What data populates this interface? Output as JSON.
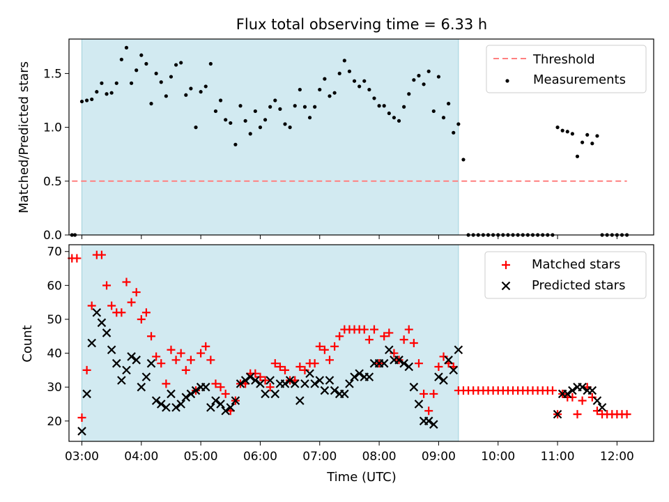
{
  "figure_title": "Flux total observing time = 6.33 h",
  "colors": {
    "shade": "#add8e6",
    "threshold": "#ff7f7f",
    "measurement": "#000000",
    "matched": "#ff0000",
    "predicted": "#000000"
  },
  "chart_data": [
    {
      "type": "scatter",
      "title": "Flux total observing time = 6.33 h",
      "ylabel": "Matched/Predicted stars",
      "xlabel": "",
      "xlim": [
        "02:47",
        "12:37"
      ],
      "ylim": [
        0,
        1.82
      ],
      "yticks": [
        "0.0",
        "0.5",
        "1.0",
        "1.5"
      ],
      "shaded_span": [
        "03:00",
        "09:20"
      ],
      "legend_position": "upper right",
      "series": [
        {
          "name": "Threshold",
          "type": "line",
          "style": "dashed",
          "x": [
            "02:50",
            "12:10"
          ],
          "y": [
            0.5,
            0.5
          ]
        },
        {
          "name": "Measurements",
          "type": "scatter",
          "x": [
            "02:50",
            "02:53",
            "03:00",
            "03:05",
            "03:10",
            "03:15",
            "03:20",
            "03:25",
            "03:30",
            "03:35",
            "03:40",
            "03:45",
            "03:50",
            "03:55",
            "04:00",
            "04:05",
            "04:10",
            "04:15",
            "04:20",
            "04:25",
            "04:30",
            "04:35",
            "04:40",
            "04:45",
            "04:50",
            "04:55",
            "05:00",
            "05:05",
            "05:10",
            "05:15",
            "05:20",
            "05:25",
            "05:30",
            "05:35",
            "05:40",
            "05:45",
            "05:50",
            "05:55",
            "06:00",
            "06:05",
            "06:10",
            "06:15",
            "06:20",
            "06:25",
            "06:30",
            "06:35",
            "06:40",
            "06:45",
            "06:50",
            "06:55",
            "07:00",
            "07:05",
            "07:10",
            "07:15",
            "07:20",
            "07:25",
            "07:30",
            "07:35",
            "07:40",
            "07:45",
            "07:50",
            "07:55",
            "08:00",
            "08:05",
            "08:10",
            "08:15",
            "08:20",
            "08:25",
            "08:30",
            "08:35",
            "08:40",
            "08:45",
            "08:50",
            "08:55",
            "09:00",
            "09:05",
            "09:10",
            "09:15",
            "09:20",
            "09:25",
            "09:30",
            "09:35",
            "09:40",
            "09:45",
            "09:50",
            "09:55",
            "10:00",
            "10:05",
            "10:10",
            "10:15",
            "10:20",
            "10:25",
            "10:30",
            "10:35",
            "10:40",
            "10:45",
            "10:50",
            "10:55",
            "11:00",
            "11:05",
            "11:10",
            "11:15",
            "11:20",
            "11:25",
            "11:30",
            "11:35",
            "11:40",
            "11:45",
            "11:50",
            "11:55",
            "12:00",
            "12:05",
            "12:10"
          ],
          "y": [
            0,
            0,
            1.24,
            1.25,
            1.26,
            1.33,
            1.41,
            1.31,
            1.32,
            1.41,
            1.63,
            1.74,
            1.41,
            1.53,
            1.67,
            1.59,
            1.22,
            1.5,
            1.42,
            1.29,
            1.47,
            1.58,
            1.6,
            1.3,
            1.36,
            1.0,
            1.33,
            1.38,
            1.59,
            1.15,
            1.25,
            1.07,
            1.04,
            0.84,
            1.2,
            1.06,
            0.94,
            1.15,
            1.0,
            1.07,
            1.19,
            1.25,
            1.17,
            1.03,
            1.0,
            1.2,
            1.35,
            1.19,
            1.09,
            1.19,
            1.35,
            1.45,
            1.29,
            1.32,
            1.5,
            1.62,
            1.52,
            1.43,
            1.38,
            1.43,
            1.35,
            1.27,
            1.2,
            1.2,
            1.13,
            1.09,
            1.06,
            1.19,
            1.31,
            1.44,
            1.48,
            1.4,
            1.52,
            1.15,
            1.47,
            1.09,
            1.22,
            0.95,
            1.03,
            0.7,
            0,
            0,
            0,
            0,
            0,
            0,
            0,
            0,
            0,
            0,
            0,
            0,
            0,
            0,
            0,
            0,
            0,
            0,
            1.0,
            0.97,
            0.96,
            0.94,
            0.73,
            0.86,
            0.93,
            0.85,
            0.92,
            0,
            0,
            0,
            0,
            0,
            0
          ]
        }
      ]
    },
    {
      "type": "scatter",
      "xlabel": "Time (UTC)",
      "ylabel": "Count",
      "xlim": [
        "02:47",
        "12:37"
      ],
      "ylim": [
        14,
        72
      ],
      "xticks": [
        "03:00",
        "04:00",
        "05:00",
        "06:00",
        "07:00",
        "08:00",
        "09:00",
        "10:00",
        "11:00",
        "12:00"
      ],
      "yticks": [
        "20",
        "30",
        "40",
        "50",
        "60",
        "70"
      ],
      "shaded_span": [
        "03:00",
        "09:20"
      ],
      "legend_position": "upper right",
      "series": [
        {
          "name": "Matched stars",
          "marker": "+",
          "x": [
            "02:50",
            "02:55",
            "03:00",
            "03:05",
            "03:10",
            "03:15",
            "03:20",
            "03:25",
            "03:30",
            "03:35",
            "03:40",
            "03:45",
            "03:50",
            "03:55",
            "04:00",
            "04:05",
            "04:10",
            "04:15",
            "04:20",
            "04:25",
            "04:30",
            "04:35",
            "04:40",
            "04:45",
            "04:50",
            "04:55",
            "05:00",
            "05:05",
            "05:10",
            "05:15",
            "05:20",
            "05:25",
            "05:30",
            "05:35",
            "05:40",
            "05:45",
            "05:50",
            "05:55",
            "06:00",
            "06:05",
            "06:10",
            "06:15",
            "06:20",
            "06:25",
            "06:30",
            "06:35",
            "06:40",
            "06:45",
            "06:50",
            "06:55",
            "07:00",
            "07:05",
            "07:10",
            "07:15",
            "07:20",
            "07:25",
            "07:30",
            "07:35",
            "07:40",
            "07:45",
            "07:50",
            "07:55",
            "08:00",
            "08:05",
            "08:10",
            "08:15",
            "08:20",
            "08:25",
            "08:30",
            "08:35",
            "08:40",
            "08:45",
            "08:50",
            "08:55",
            "09:00",
            "09:05",
            "09:10",
            "09:15",
            "09:20",
            "09:25",
            "09:30",
            "09:35",
            "09:40",
            "09:45",
            "09:50",
            "09:55",
            "10:00",
            "10:05",
            "10:10",
            "10:15",
            "10:20",
            "10:25",
            "10:30",
            "10:35",
            "10:40",
            "10:45",
            "10:50",
            "10:55",
            "11:00",
            "11:05",
            "11:10",
            "11:15",
            "11:20",
            "11:25",
            "11:30",
            "11:35",
            "11:40",
            "11:45",
            "11:50",
            "11:55",
            "12:00",
            "12:05",
            "12:10"
          ],
          "y": [
            68,
            68,
            21,
            35,
            54,
            69,
            69,
            60,
            54,
            52,
            52,
            61,
            55,
            58,
            50,
            52,
            45,
            39,
            37,
            31,
            41,
            38,
            40,
            35,
            38,
            29,
            40,
            42,
            38,
            31,
            30,
            28,
            23,
            26,
            31,
            31,
            34,
            34,
            33,
            32,
            30,
            37,
            36,
            35,
            32,
            32,
            36,
            35,
            37,
            37,
            42,
            41,
            38,
            42,
            45,
            47,
            47,
            47,
            47,
            47,
            44,
            47,
            37,
            45,
            46,
            40,
            38,
            44,
            47,
            43,
            37,
            28,
            23,
            28,
            36,
            39,
            37,
            36,
            29,
            29,
            29,
            29,
            29,
            29,
            29,
            29,
            29,
            29,
            29,
            29,
            29,
            29,
            29,
            29,
            29,
            29,
            29,
            29,
            22,
            28,
            27,
            27,
            22,
            26,
            30,
            27,
            23,
            22,
            22,
            22,
            22,
            22,
            22
          ]
        },
        {
          "name": "Predicted stars",
          "marker": "x",
          "x": [
            "03:00",
            "03:05",
            "03:10",
            "03:15",
            "03:20",
            "03:25",
            "03:30",
            "03:35",
            "03:40",
            "03:45",
            "03:50",
            "03:55",
            "04:00",
            "04:05",
            "04:10",
            "04:15",
            "04:20",
            "04:25",
            "04:30",
            "04:35",
            "04:40",
            "04:45",
            "04:50",
            "04:55",
            "05:00",
            "05:05",
            "05:10",
            "05:15",
            "05:20",
            "05:25",
            "05:30",
            "05:35",
            "05:40",
            "05:45",
            "05:50",
            "05:55",
            "06:00",
            "06:05",
            "06:10",
            "06:15",
            "06:20",
            "06:25",
            "06:30",
            "06:35",
            "06:40",
            "06:45",
            "06:50",
            "06:55",
            "07:00",
            "07:05",
            "07:10",
            "07:15",
            "07:20",
            "07:25",
            "07:30",
            "07:35",
            "07:40",
            "07:45",
            "07:50",
            "07:55",
            "08:00",
            "08:05",
            "08:10",
            "08:15",
            "08:20",
            "08:25",
            "08:30",
            "08:35",
            "08:40",
            "08:45",
            "08:50",
            "08:55",
            "09:00",
            "09:05",
            "09:10",
            "09:15",
            "09:20",
            "11:00",
            "11:05",
            "11:10",
            "11:15",
            "11:20",
            "11:25",
            "11:30",
            "11:35",
            "11:40",
            "11:45"
          ],
          "y": [
            17,
            28,
            43,
            52,
            49,
            46,
            41,
            37,
            32,
            35,
            39,
            38,
            30,
            33,
            37,
            26,
            25,
            24,
            28,
            24,
            25,
            27,
            28,
            29,
            30,
            30,
            24,
            26,
            25,
            23,
            24,
            26,
            31,
            32,
            33,
            32,
            31,
            28,
            32,
            28,
            31,
            31,
            32,
            31,
            26,
            31,
            34,
            31,
            32,
            29,
            32,
            29,
            28,
            28,
            31,
            33,
            34,
            33,
            33,
            37,
            37,
            37,
            41,
            38,
            38,
            37,
            36,
            30,
            25,
            20,
            20,
            19,
            33,
            32,
            38,
            35,
            41,
            22,
            28,
            28,
            29,
            30,
            30,
            29,
            29,
            26,
            24
          ]
        }
      ]
    }
  ]
}
